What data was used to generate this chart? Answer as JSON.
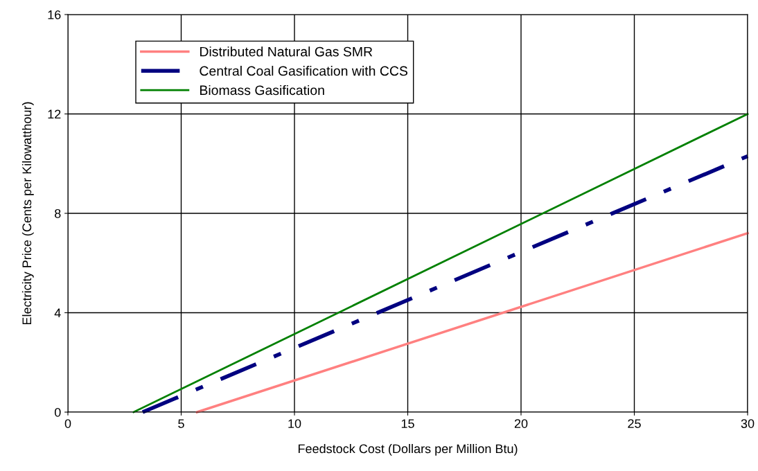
{
  "chart_data": {
    "type": "line",
    "xlabel": "Feedstock Cost (Dollars per Million Btu)",
    "ylabel": "Electricity Price (Cents per Kilowatthour)",
    "xlim": [
      0,
      30
    ],
    "xticks": [
      0,
      5,
      10,
      15,
      20,
      25,
      30
    ],
    "ylim": [
      0,
      16
    ],
    "yticks": [
      0,
      4,
      8,
      12,
      16
    ],
    "grid": true,
    "legend": "top left",
    "marker": "none",
    "series": [
      {
        "name": "Distributed Natural Gas SMR",
        "color": "#ff8080",
        "x": [
          5.7,
          30
        ],
        "values": [
          0,
          7.2
        ],
        "line_style": "solid"
      },
      {
        "name": "Central Coal Gasification with CCS",
        "color": "#000080",
        "x": [
          3.3,
          30
        ],
        "values": [
          0,
          10.3
        ],
        "line_style": "dashdot"
      },
      {
        "name": "Biomass Gasification",
        "color": "#008000",
        "x": [
          2.9,
          30
        ],
        "values": [
          0,
          12
        ],
        "line_style": "solid"
      }
    ]
  }
}
